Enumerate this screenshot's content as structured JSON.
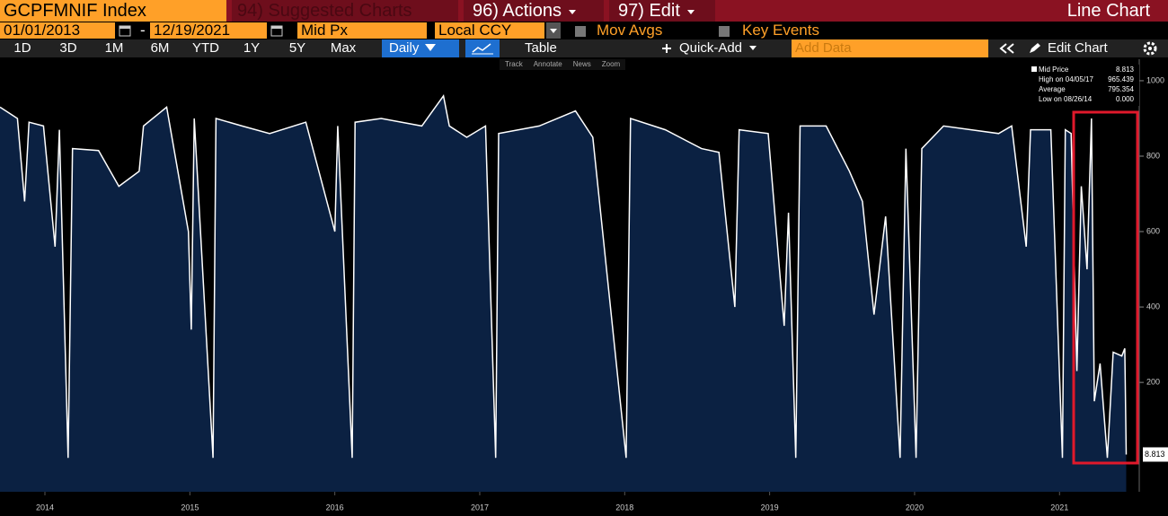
{
  "header": {
    "ticker": "GCPFMNIF Index",
    "suggested": "94) Suggested Charts",
    "actions": "96) Actions",
    "edit": "97) Edit",
    "chart_type": "Line Chart"
  },
  "controls": {
    "start": "01/01/2013",
    "separator": "-",
    "end": "12/19/2021",
    "field": "Mid Px",
    "currency": "Local CCY",
    "mov_avgs": "Mov Avgs",
    "key_events": "Key Events"
  },
  "periods": [
    "1D",
    "3D",
    "1M",
    "6M",
    "YTD",
    "1Y",
    "5Y",
    "Max"
  ],
  "toolbar": {
    "frequency": "Daily",
    "table": "Table",
    "quick_add": "Quick-Add",
    "add_data": "Add Data",
    "edit_chart": "Edit Chart"
  },
  "tools": [
    "Track",
    "Annotate",
    "News",
    "Zoom"
  ],
  "chart_data": {
    "type": "line",
    "series": [
      {
        "name": "Mid Price",
        "color": "#ffffff",
        "x": [
          2014.19,
          2014.31,
          2014.36,
          2014.39,
          2014.49,
          2014.57,
          2014.6,
          2014.66,
          2014.69,
          2014.87,
          2015.01,
          2015.15,
          2015.18,
          2015.34,
          2015.49,
          2015.51,
          2015.53,
          2015.66,
          2015.68,
          2015.86,
          2016.05,
          2016.3,
          2016.5,
          2016.52,
          2016.62,
          2016.64,
          2016.82,
          2017.1,
          2017.25,
          2017.29,
          2017.41,
          2017.54,
          2017.59,
          2017.61,
          2017.63,
          2017.91,
          2018.16,
          2018.28,
          2018.51,
          2018.54,
          2018.78,
          2019.03,
          2019.15,
          2019.26,
          2019.29,
          2019.49,
          2019.6,
          2019.63,
          2019.68,
          2019.71,
          2019.89,
          2020.05,
          2020.14,
          2020.22,
          2020.3,
          2020.4,
          2020.44,
          2020.51,
          2020.55,
          2020.7,
          2020.89,
          2021.08,
          2021.17,
          2021.27,
          2021.3,
          2021.44,
          2021.52,
          2021.54,
          2021.58,
          2021.62,
          2021.65,
          2021.69,
          2021.72,
          2021.74,
          2021.78,
          2021.83,
          2021.87,
          2021.93,
          2021.95,
          2021.96
        ],
        "values": [
          930,
          900,
          680,
          890,
          880,
          560,
          870,
          0,
          820,
          815,
          720,
          760,
          880,
          930,
          600,
          340,
          900,
          0,
          900,
          880,
          860,
          890,
          600,
          880,
          0,
          890,
          900,
          880,
          960,
          880,
          850,
          880,
          250,
          0,
          860,
          880,
          920,
          850,
          0,
          900,
          870,
          820,
          810,
          400,
          870,
          860,
          350,
          650,
          0,
          880,
          880,
          760,
          680,
          380,
          640,
          0,
          820,
          0,
          820,
          880,
          870,
          860,
          880,
          560,
          870,
          870,
          0,
          870,
          860,
          230,
          720,
          500,
          900,
          150,
          250,
          0,
          280,
          270,
          290,
          8.813
        ]
      }
    ],
    "stats": [
      {
        "name": "High on 04/05/17",
        "value": 965.439
      },
      {
        "name": "Average",
        "value": 795.354
      },
      {
        "name": "Low on 08/26/14",
        "value": 0,
        "value_label": "0.000"
      }
    ],
    "xlim": [
      2014.19,
      2022.05
    ],
    "xticks": [
      {
        "value": 2014.5,
        "label": "2014"
      },
      {
        "value": 2015.5,
        "label": "2015"
      },
      {
        "value": 2016.5,
        "label": "2016"
      },
      {
        "value": 2017.5,
        "label": "2017"
      },
      {
        "value": 2018.5,
        "label": "2018"
      },
      {
        "value": 2019.5,
        "label": "2019"
      },
      {
        "value": 2020.5,
        "label": "2020"
      },
      {
        "value": 2021.5,
        "label": "2021"
      }
    ],
    "ylim": [
      -90,
      1057
    ],
    "yticks": [
      200,
      400,
      600,
      800,
      1000
    ],
    "area_color": "#0b2142"
  }
}
